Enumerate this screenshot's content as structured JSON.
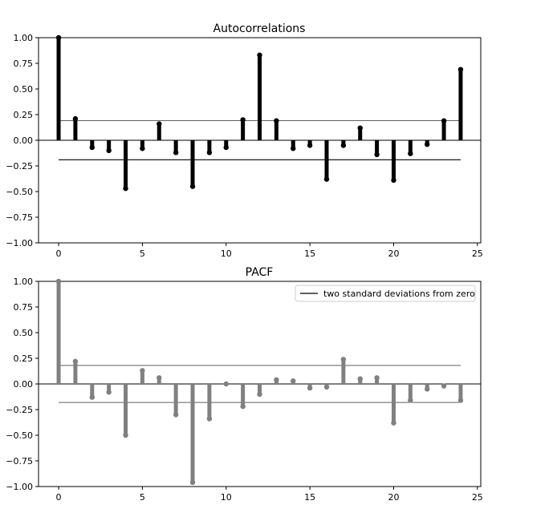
{
  "chart_data": [
    {
      "type": "stem",
      "title": "Autocorrelations",
      "xlabel": "",
      "ylabel": "",
      "xlim": [
        -1.2,
        25.2
      ],
      "ylim": [
        -1.0,
        1.0
      ],
      "x_ticks": [
        0,
        5,
        10,
        15,
        20,
        25
      ],
      "y_ticks": [
        1.0,
        0.75,
        0.5,
        0.25,
        0.0,
        -0.25,
        -0.5,
        -0.75,
        -1.0
      ],
      "x_tick_labels": [
        "0",
        "5",
        "10",
        "15",
        "20",
        "25"
      ],
      "y_tick_labels": [
        "1.00",
        "0.75",
        "0.50",
        "0.25",
        "0.00",
        "−0.25",
        "−0.50",
        "−0.75",
        "−1.00"
      ],
      "stem_color": "#000000",
      "series": [
        {
          "x": [
            0,
            1,
            2,
            3,
            4,
            5,
            6,
            7,
            8,
            9,
            10,
            11,
            12,
            13,
            14,
            15,
            16,
            17,
            18,
            19,
            20,
            21,
            22,
            23,
            24
          ],
          "values": [
            1.0,
            0.21,
            -0.07,
            -0.1,
            -0.47,
            -0.08,
            0.16,
            -0.12,
            -0.45,
            -0.12,
            -0.07,
            0.2,
            0.83,
            0.19,
            -0.08,
            -0.05,
            -0.38,
            -0.05,
            0.12,
            -0.14,
            -0.39,
            -0.13,
            -0.04,
            0.19,
            0.69
          ]
        }
      ],
      "bands": {
        "upper": 0.19,
        "lower": -0.19
      },
      "grid": false
    },
    {
      "type": "stem",
      "title": "PACF",
      "xlabel": "",
      "ylabel": "",
      "xlim": [
        -1.2,
        25.2
      ],
      "ylim": [
        -1.0,
        1.0
      ],
      "x_ticks": [
        0,
        5,
        10,
        15,
        20,
        25
      ],
      "y_ticks": [
        1.0,
        0.75,
        0.5,
        0.25,
        0.0,
        -0.25,
        -0.5,
        -0.75,
        -1.0
      ],
      "x_tick_labels": [
        "0",
        "5",
        "10",
        "15",
        "20",
        "25"
      ],
      "y_tick_labels": [
        "1.00",
        "0.75",
        "0.50",
        "0.25",
        "0.00",
        "−0.25",
        "−0.50",
        "−0.75",
        "−1.00"
      ],
      "stem_color": "#808080",
      "series": [
        {
          "x": [
            0,
            1,
            2,
            3,
            4,
            5,
            6,
            7,
            8,
            9,
            10,
            11,
            12,
            13,
            14,
            15,
            16,
            17,
            18,
            19,
            20,
            21,
            22,
            23,
            24
          ],
          "values": [
            1.0,
            0.22,
            -0.13,
            -0.08,
            -0.5,
            0.13,
            0.06,
            -0.3,
            -0.96,
            -0.34,
            0.0,
            -0.22,
            -0.1,
            0.04,
            0.03,
            -0.04,
            -0.03,
            0.24,
            0.05,
            0.06,
            -0.38,
            -0.16,
            -0.05,
            -0.02,
            -0.16
          ]
        }
      ],
      "bands": {
        "upper": 0.18,
        "lower": -0.18
      },
      "legend": {
        "placement": "top-right",
        "entries": [
          "two standard deviations from zero"
        ]
      },
      "grid": false
    }
  ]
}
